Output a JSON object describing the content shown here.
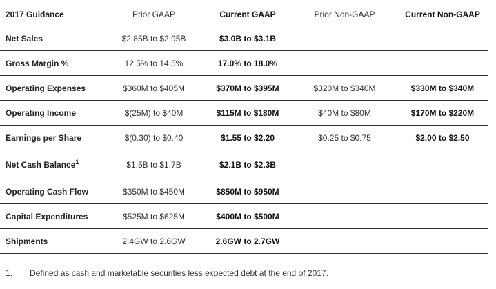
{
  "header": {
    "label": "2017 Guidance",
    "prior_gaap": "Prior GAAP",
    "current_gaap": "Current GAAP",
    "prior_non_gaap": "Prior Non-GAAP",
    "current_non_gaap": "Current Non-GAAP"
  },
  "rows": [
    {
      "label": "Net Sales",
      "prior_gaap": "$2.85B to $2.95B",
      "current_gaap": "$3.0B to $3.1B",
      "prior_non_gaap": "",
      "current_non_gaap": ""
    },
    {
      "label": "Gross Margin %",
      "prior_gaap": "12.5% to 14.5%",
      "current_gaap": "17.0% to 18.0%",
      "prior_non_gaap": "",
      "current_non_gaap": ""
    },
    {
      "label": "Operating Expenses",
      "prior_gaap": "$360M to $405M",
      "current_gaap": "$370M to $395M",
      "prior_non_gaap": "$320M to $340M",
      "current_non_gaap": "$330M to $340M"
    },
    {
      "label": "Operating Income",
      "prior_gaap": "$(25M) to $40M",
      "current_gaap": "$115M to $180M",
      "prior_non_gaap": "$40M to $80M",
      "current_non_gaap": "$170M to $220M"
    },
    {
      "label": "Earnings per Share",
      "prior_gaap": "$(0.30) to $0.40",
      "current_gaap": "$1.55 to $2.20",
      "prior_non_gaap": "$0.25 to $0.75",
      "current_non_gaap": "$2.00 to $2.50"
    },
    {
      "label": "Net Cash Balance",
      "footnote_mark": "1",
      "prior_gaap": "$1.5B to $1.7B",
      "current_gaap": "$2.1B to $2.3B",
      "prior_non_gaap": "",
      "current_non_gaap": ""
    },
    {
      "label": "Operating Cash Flow",
      "prior_gaap": "$350M to $450M",
      "current_gaap": "$850M to $950M",
      "prior_non_gaap": "",
      "current_non_gaap": ""
    },
    {
      "label": "Capital Expenditures",
      "prior_gaap": "$525M to $625M",
      "current_gaap": "$400M to $500M",
      "prior_non_gaap": "",
      "current_non_gaap": ""
    },
    {
      "label": "Shipments",
      "prior_gaap": "2.4GW to 2.6GW",
      "current_gaap": "2.6GW to 2.7GW",
      "prior_non_gaap": "",
      "current_non_gaap": ""
    }
  ],
  "footnote": {
    "number": "1.",
    "text": "Defined as cash and marketable securities less expected debt at the end of 2017."
  }
}
